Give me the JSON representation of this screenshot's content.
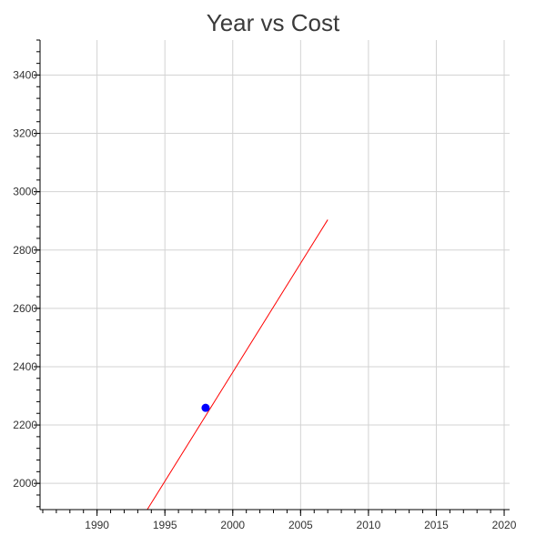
{
  "chart_data": {
    "type": "line",
    "title": "Year vs Cost",
    "xlabel": "",
    "ylabel": "",
    "xlim": [
      1985.8,
      2020.4
    ],
    "ylim": [
      1910,
      3520
    ],
    "grid": true,
    "x_ticks": [
      1990,
      1995,
      2000,
      2005,
      2010,
      2015,
      2020
    ],
    "y_ticks": [
      2000,
      2200,
      2400,
      2600,
      2800,
      3000,
      3200,
      3400
    ],
    "series": [
      {
        "kind": "line",
        "color": "#ff0000",
        "x": [
          1993.7,
          2007.0
        ],
        "y": [
          1910,
          2904
        ]
      },
      {
        "kind": "scatter",
        "color": "#0000ff",
        "x": [
          1998
        ],
        "y": [
          2259
        ]
      }
    ]
  }
}
